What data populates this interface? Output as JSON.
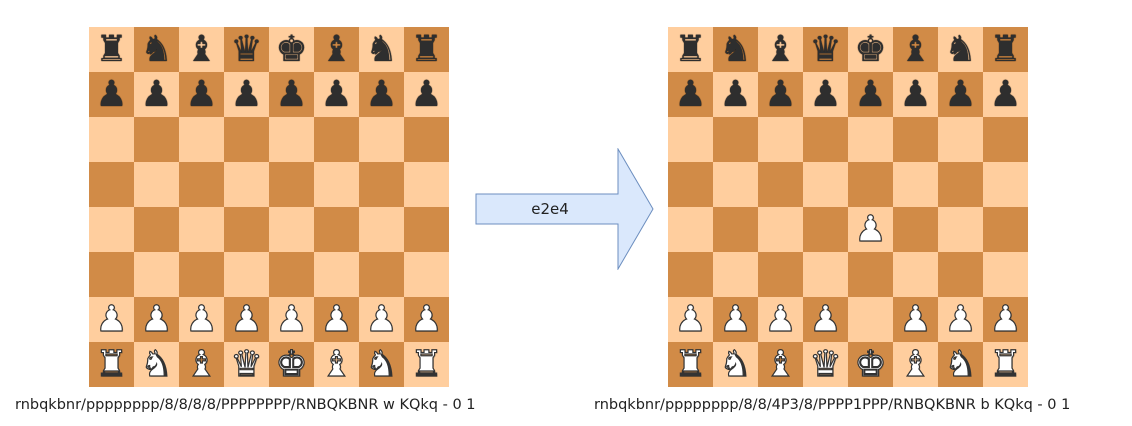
{
  "boards": [
    {
      "id": "left",
      "placement": [
        "rnbqkbnr",
        "pppppppp",
        "........",
        "........",
        "........",
        "........",
        "PPPPPPPP",
        "RNBQKBNR"
      ],
      "fen": "rnbqkbnr/pppppppp/8/8/8/8/PPPPPPPP/RNBQKBNR w KQkq - 0 1"
    },
    {
      "id": "right",
      "placement": [
        "rnbqkbnr",
        "pppppppp",
        "........",
        "........",
        "....P...",
        "........",
        "PPPP.PPP",
        "RNBQKBNR"
      ],
      "fen": "rnbqkbnr/pppppppp/8/8/4P3/8/PPPP1PPP/RNBQKBNR b KQkq - 0 1"
    }
  ],
  "move": "e2e4",
  "colors": {
    "light_square": "#ffce9e",
    "dark_square": "#d18b47",
    "arrow_fill": "#dae8fc",
    "arrow_stroke": "#6c8ebf"
  }
}
